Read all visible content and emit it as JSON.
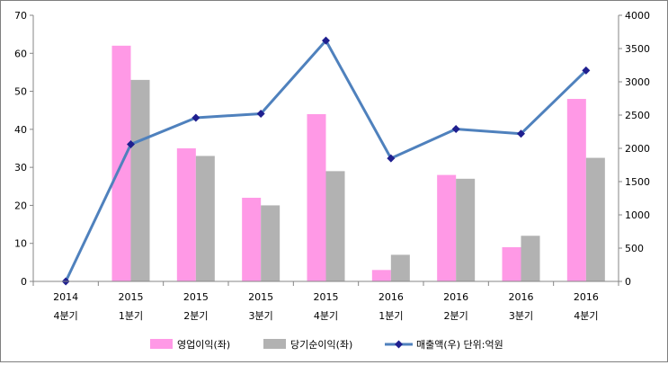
{
  "chart_data": {
    "type": "bar+line",
    "categories": [
      [
        "2014",
        "4분기"
      ],
      [
        "2015",
        "1분기"
      ],
      [
        "2015",
        "2분기"
      ],
      [
        "2015",
        "3분기"
      ],
      [
        "2015",
        "4분기"
      ],
      [
        "2016",
        "1분기"
      ],
      [
        "2016",
        "2분기"
      ],
      [
        "2016",
        "3분기"
      ],
      [
        "2016",
        "4분기"
      ]
    ],
    "series": [
      {
        "name": "영업이익(좌)",
        "kind": "bar",
        "axis": "left",
        "color": "#ff99e6",
        "values": [
          0,
          62,
          35,
          22,
          44,
          3,
          28,
          9,
          48
        ]
      },
      {
        "name": "당기순이익(좌)",
        "kind": "bar",
        "axis": "left",
        "color": "#b2b2b2",
        "values": [
          0,
          53,
          33,
          20,
          29,
          7,
          27,
          12,
          32.5
        ]
      },
      {
        "name": "매출액(우)",
        "kind": "line",
        "axis": "right",
        "color": "#4f81bd",
        "marker_color": "#1f1f8f",
        "values": [
          0,
          2060,
          2460,
          2520,
          3620,
          1850,
          2290,
          2220,
          3170
        ]
      }
    ],
    "left_axis": {
      "min": 0,
      "max": 70,
      "step": 10,
      "ticks": [
        "0",
        "10",
        "20",
        "30",
        "40",
        "50",
        "60",
        "70"
      ]
    },
    "right_axis": {
      "min": 0,
      "max": 4000,
      "step": 500,
      "ticks": [
        "0",
        "500",
        "1000",
        "1500",
        "2000",
        "2500",
        "3000",
        "3500",
        "4000"
      ]
    },
    "legend": {
      "placement": "bottom",
      "unit_note": "단위:억원"
    },
    "grid": false
  }
}
